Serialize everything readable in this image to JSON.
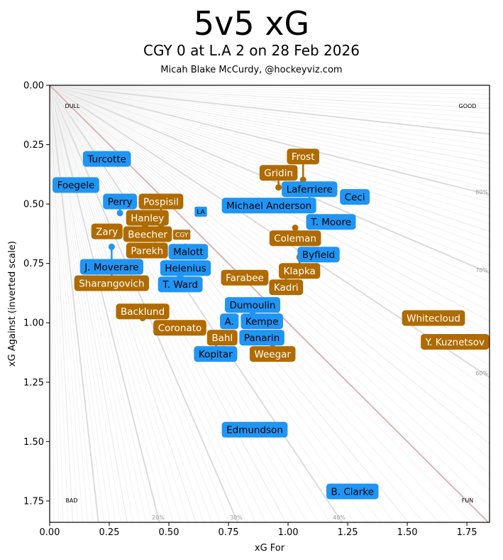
{
  "chart_data": {
    "type": "scatter",
    "title": "5v5 xG",
    "subtitle": "CGY 0 at L.A 2 on 28 Feb 2026",
    "credit": "Micah Blake McCurdy, @hockeyviz.com",
    "xlabel": "xG For",
    "ylabel": "xG Against (inverted scale)",
    "xlim": [
      0,
      1.845
    ],
    "ylim": [
      1.84,
      0
    ],
    "y_inverted": true,
    "xticks": [
      "0.00",
      "0.25",
      "0.50",
      "0.75",
      "1.00",
      "1.25",
      "1.50",
      "1.75"
    ],
    "yticks": [
      "0.00",
      "0.25",
      "0.50",
      "0.75",
      "1.00",
      "1.25",
      "1.50",
      "1.75"
    ],
    "corner_labels": {
      "top_left": "DULL",
      "top_right": "GOOD",
      "bottom_left": "BAD",
      "bottom_right": "FUN"
    },
    "xgf_pct_labels": {
      "bottom": [
        "20%",
        "30%",
        "40%"
      ],
      "right": [
        "60%",
        "70%",
        "80%"
      ]
    },
    "reference_line": "xGF = xGA",
    "teams": {
      "LA": {
        "label": "LA",
        "color": "#1f95f5",
        "text_color": "#000000",
        "x": 0.634,
        "y": 0.532
      },
      "CGY": {
        "label": "CGY",
        "color": "#b06b00",
        "text_color": "#ffffff",
        "x": 0.533,
        "y": 0.628
      }
    },
    "players": [
      {
        "name": "Turcotte",
        "team": "LA",
        "x": 0.24,
        "y": 0.31
      },
      {
        "name": "Foegele",
        "team": "LA",
        "x": 0.11,
        "y": 0.42
      },
      {
        "name": "Perry",
        "team": "LA",
        "x": 0.295,
        "y": 0.538
      },
      {
        "name": "Hanley",
        "team": "CGY",
        "x": 0.4,
        "y": 0.59
      },
      {
        "name": "Pospisil",
        "team": "CGY",
        "x": 0.467,
        "y": 0.586
      },
      {
        "name": "Zary",
        "team": "CGY",
        "x": 0.262,
        "y": 0.619
      },
      {
        "name": "Beecher",
        "team": "CGY",
        "x": 0.42,
        "y": 0.63
      },
      {
        "name": "J. Moverare",
        "team": "LA",
        "x": 0.26,
        "y": 0.68
      },
      {
        "name": "Malott",
        "team": "LA",
        "x": 0.57,
        "y": 0.68
      },
      {
        "name": "Parekh",
        "team": "CGY",
        "x": 0.42,
        "y": 0.69
      },
      {
        "name": "Sharangovich",
        "team": "CGY",
        "x": 0.26,
        "y": 0.78
      },
      {
        "name": "Helenius",
        "team": "LA",
        "x": 0.57,
        "y": 0.78
      },
      {
        "name": "T. Ward",
        "team": "LA",
        "x": 0.548,
        "y": 0.807
      },
      {
        "name": "Farabee",
        "team": "CGY",
        "x": 0.82,
        "y": 0.81
      },
      {
        "name": "Gridin",
        "team": "CGY",
        "x": 0.96,
        "y": 0.43
      },
      {
        "name": "Frost",
        "team": "CGY",
        "x": 1.063,
        "y": 0.398
      },
      {
        "name": "Michael Anderson",
        "team": "LA",
        "x": 0.92,
        "y": 0.5
      },
      {
        "name": "Laferriere",
        "team": "LA",
        "x": 1.09,
        "y": 0.49
      },
      {
        "name": "Ceci",
        "team": "LA",
        "x": 1.28,
        "y": 0.47
      },
      {
        "name": "T. Moore",
        "team": "LA",
        "x": 1.18,
        "y": 0.56
      },
      {
        "name": "Coleman",
        "team": "CGY",
        "x": 1.03,
        "y": 0.6
      },
      {
        "name": "Byfield",
        "team": "LA",
        "x": 1.128,
        "y": 0.703
      },
      {
        "name": "Klapka",
        "team": "CGY",
        "x": 1.048,
        "y": 0.724
      },
      {
        "name": "Kadri",
        "team": "CGY",
        "x": 0.99,
        "y": 0.77
      },
      {
        "name": "Dumoulin",
        "team": "LA",
        "x": 0.851,
        "y": 0.963
      },
      {
        "name": "Backlund",
        "team": "CGY",
        "x": 0.39,
        "y": 0.98
      },
      {
        "name": "Coronato",
        "team": "CGY",
        "x": 0.55,
        "y": 1.02
      },
      {
        "name": "A.",
        "team": "LA",
        "x": 0.77,
        "y": 1.01
      },
      {
        "name": "Kempe",
        "team": "LA",
        "x": 0.88,
        "y": 1.01
      },
      {
        "name": "Kopitar",
        "team": "LA",
        "x": 0.7,
        "y": 1.05
      },
      {
        "name": "Panarin",
        "team": "LA",
        "x": 0.88,
        "y": 1.07
      },
      {
        "name": "Bahl",
        "team": "CGY",
        "x": 0.72,
        "y": 1.082
      },
      {
        "name": "Weegar",
        "team": "CGY",
        "x": 0.935,
        "y": 1.088
      },
      {
        "name": "Whitecloud",
        "team": "CGY",
        "x": 1.61,
        "y": 0.98
      },
      {
        "name": "Y. Kuznetsov",
        "team": "CGY",
        "x": 1.74,
        "y": 1.08
      },
      {
        "name": "Edmundson",
        "team": "LA",
        "x": 0.86,
        "y": 1.45
      },
      {
        "name": "B. Clarke",
        "team": "LA",
        "x": 1.27,
        "y": 1.71
      }
    ]
  }
}
